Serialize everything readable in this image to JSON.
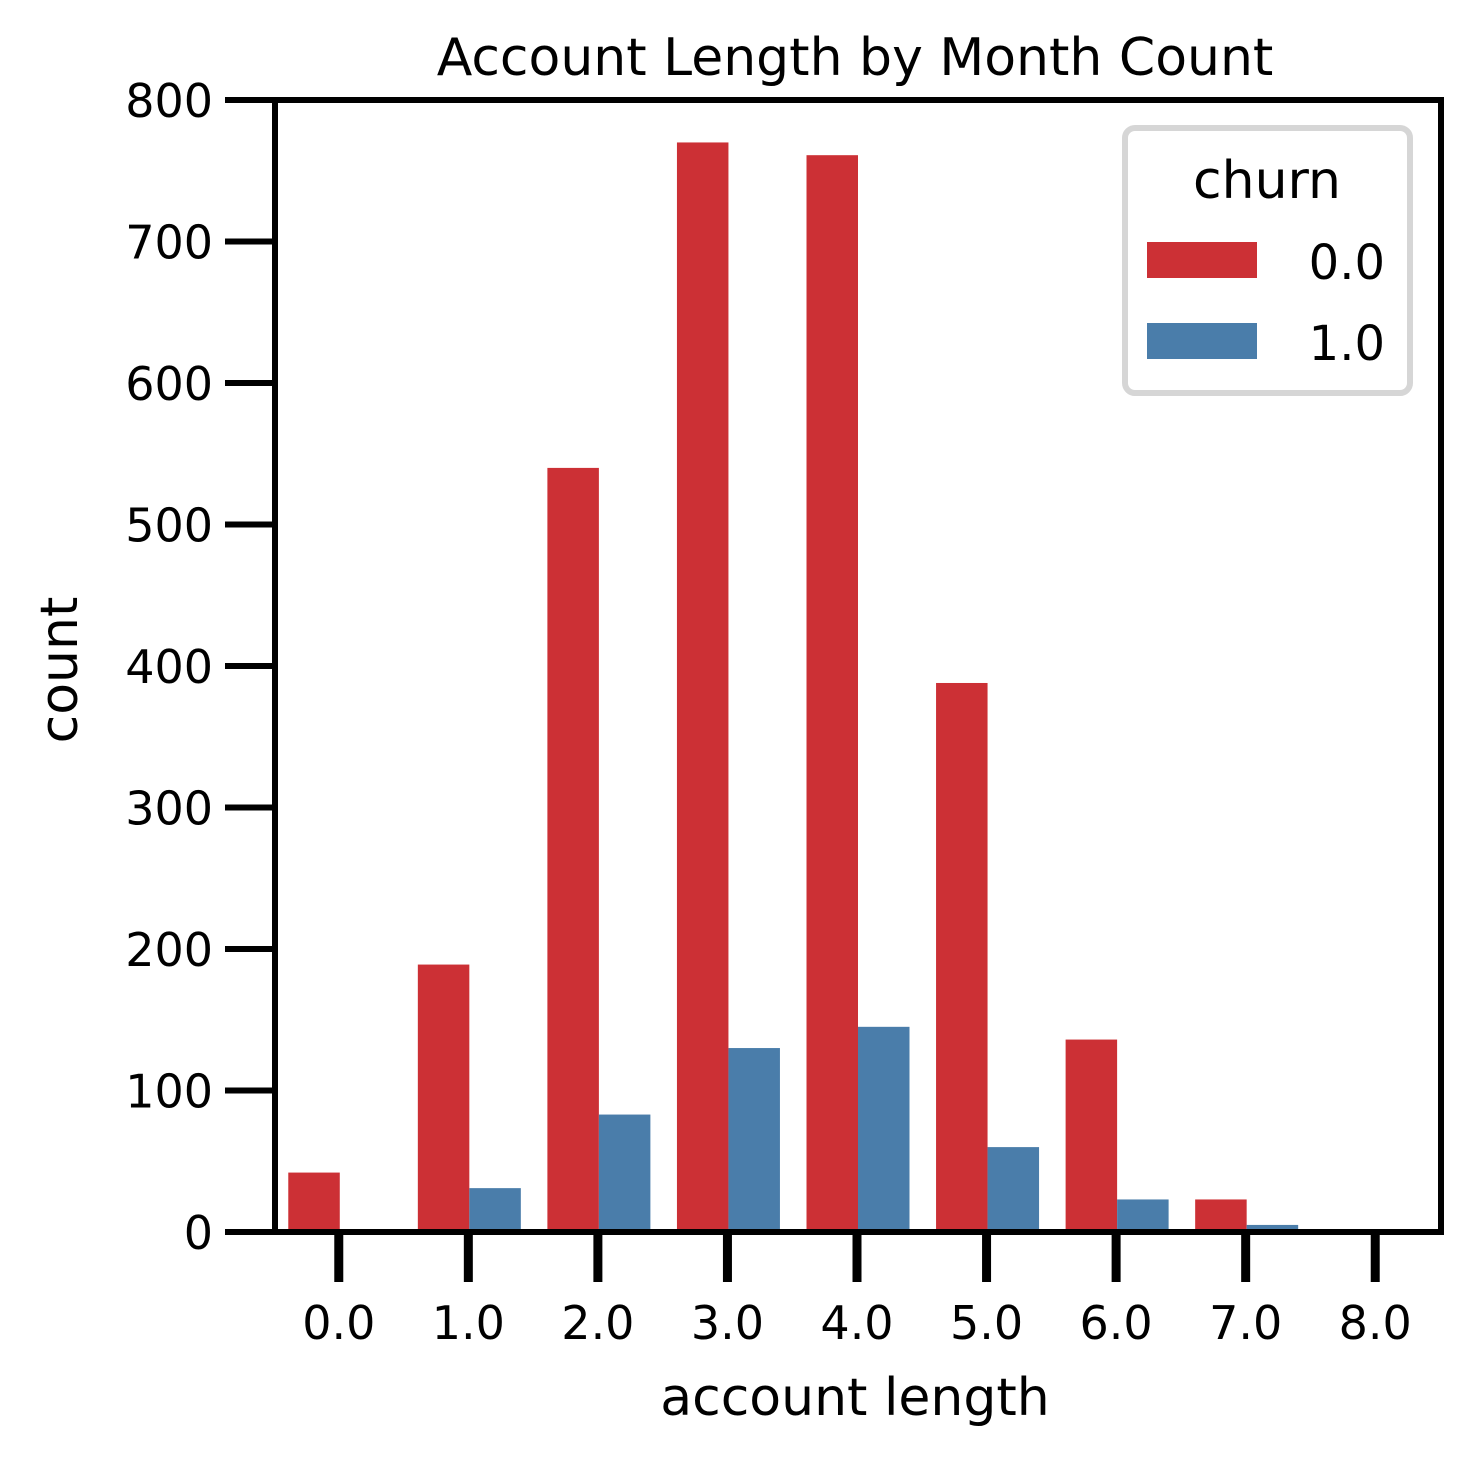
{
  "chart_data": {
    "type": "bar",
    "title": "Account Length by Month Count",
    "xlabel": "account length",
    "ylabel": "count",
    "categories": [
      "0.0",
      "1.0",
      "2.0",
      "3.0",
      "4.0",
      "5.0",
      "6.0",
      "7.0",
      "8.0"
    ],
    "series": [
      {
        "name": "0.0",
        "color": "#CC3035",
        "values": [
          42,
          189,
          540,
          770,
          761,
          388,
          136,
          23,
          0
        ]
      },
      {
        "name": "1.0",
        "color": "#4A7DAA",
        "values": [
          2,
          31,
          83,
          130,
          145,
          60,
          23,
          5,
          0
        ]
      }
    ],
    "ylim": [
      0,
      800
    ],
    "yticks": [
      "0",
      "100",
      "200",
      "300",
      "400",
      "500",
      "600",
      "700",
      "800"
    ],
    "grid": false,
    "legend": {
      "title": "churn",
      "placement": "top-right"
    }
  }
}
